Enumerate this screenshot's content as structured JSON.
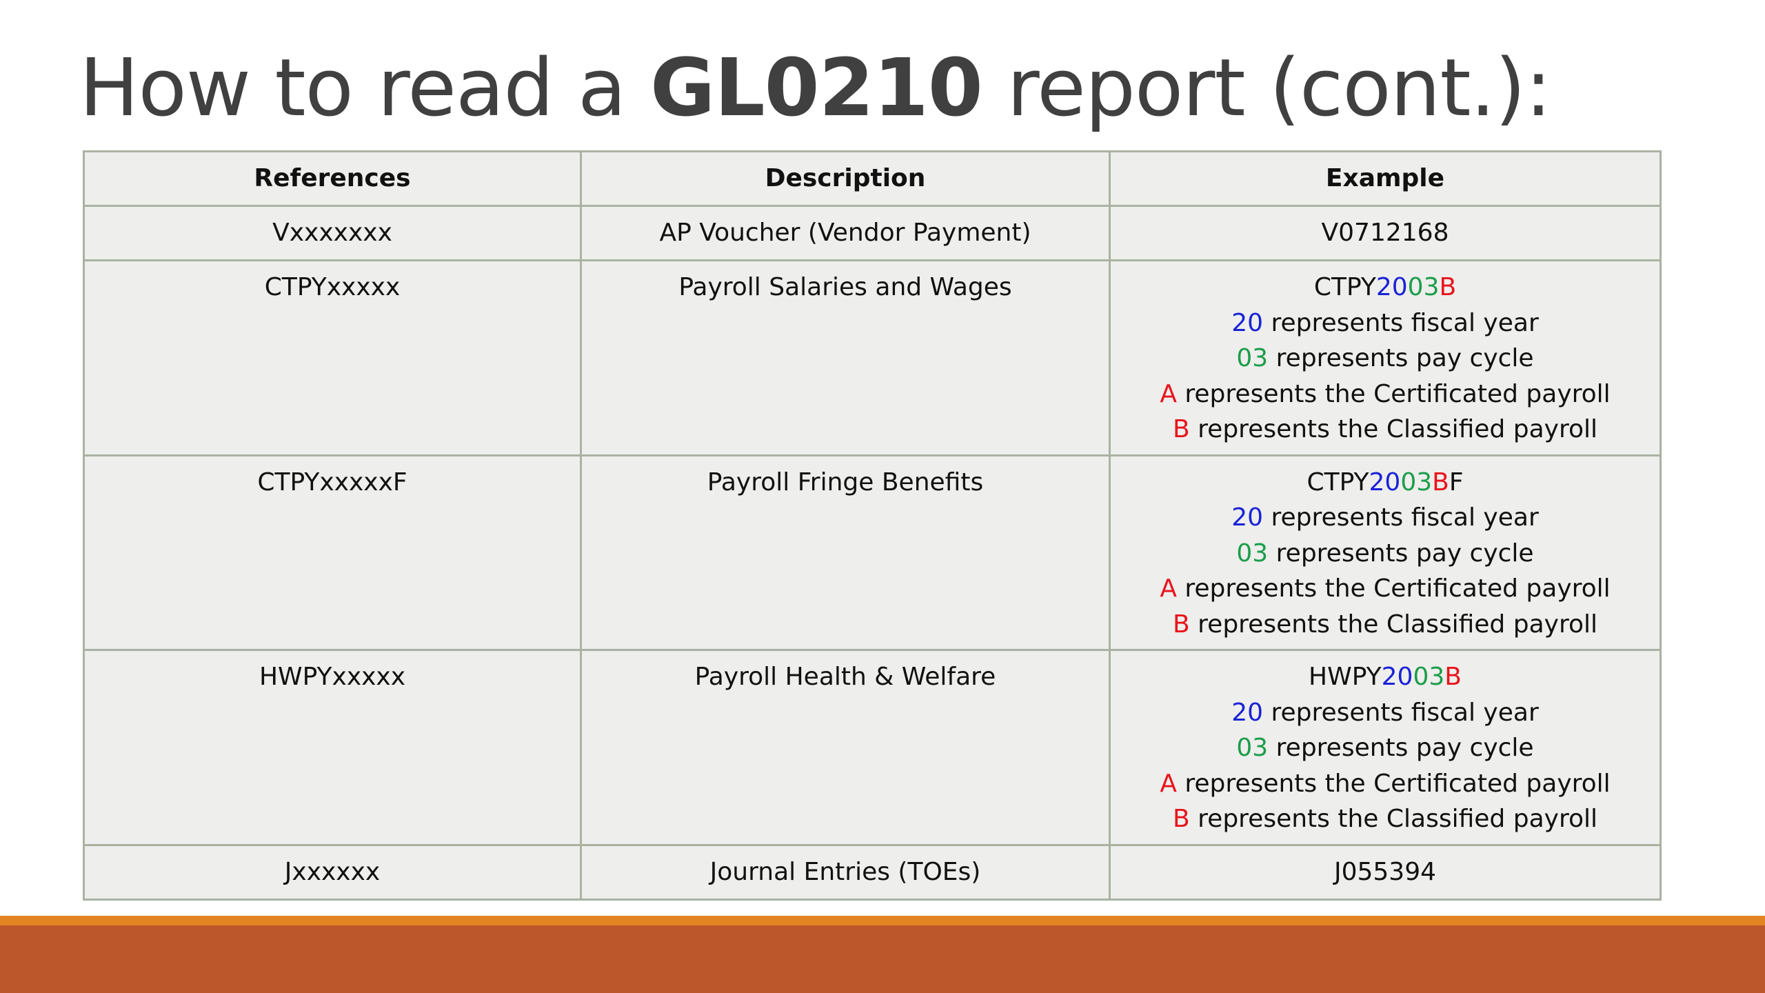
{
  "title": {
    "prefix": "How to read a ",
    "bold": "GL0210",
    "suffix": " report (cont.):"
  },
  "table": {
    "headers": [
      "References",
      "Description",
      "Example"
    ],
    "rows": [
      {
        "reference": "Vxxxxxxx",
        "description": "AP Voucher (Vendor Payment)",
        "example": "V0712168"
      },
      {
        "reference": "CTPYxxxxx",
        "description": "Payroll Salaries and Wages",
        "example_code": {
          "prefix": "CTPY",
          "year": "20",
          "cycle": "03",
          "type": "B",
          "suffix": ""
        },
        "notes": [
          {
            "key": "20",
            "text": " represents fiscal year",
            "color": "blue"
          },
          {
            "key": "03",
            "text": " represents pay cycle",
            "color": "green"
          },
          {
            "key": "A",
            "text": " represents the Certificated payroll",
            "color": "red"
          },
          {
            "key": "B",
            "text": " represents the Classified payroll",
            "color": "red"
          }
        ]
      },
      {
        "reference": "CTPYxxxxxF",
        "description": "Payroll Fringe Benefits",
        "example_code": {
          "prefix": "CTPY",
          "year": "20",
          "cycle": "03",
          "type": "B",
          "suffix": "F"
        },
        "notes": [
          {
            "key": "20",
            "text": " represents fiscal year",
            "color": "blue"
          },
          {
            "key": "03",
            "text": " represents pay cycle",
            "color": "green"
          },
          {
            "key": "A",
            "text": " represents the Certificated payroll",
            "color": "red"
          },
          {
            "key": "B",
            "text": " represents the Classified payroll",
            "color": "red"
          }
        ]
      },
      {
        "reference": "HWPYxxxxx",
        "description": "Payroll Health & Welfare",
        "example_code": {
          "prefix": "HWPY",
          "year": "20",
          "cycle": "03",
          "type": "B",
          "suffix": ""
        },
        "notes": [
          {
            "key": "20",
            "text": " represents fiscal year",
            "color": "blue"
          },
          {
            "key": "03",
            "text": " represents pay cycle",
            "color": "green"
          },
          {
            "key": "A",
            "text": " represents the Certificated payroll",
            "color": "red"
          },
          {
            "key": "B",
            "text": " represents the Classified payroll",
            "color": "red"
          }
        ]
      },
      {
        "reference": "Jxxxxxx",
        "description": "Journal Entries (TOEs)",
        "example": "J055394"
      }
    ]
  },
  "colors": {
    "year": "#1a23d6",
    "cycle": "#1a9d4a",
    "type": "#e8141c",
    "band_top": "#e38521",
    "band_bottom": "#bc562b"
  }
}
